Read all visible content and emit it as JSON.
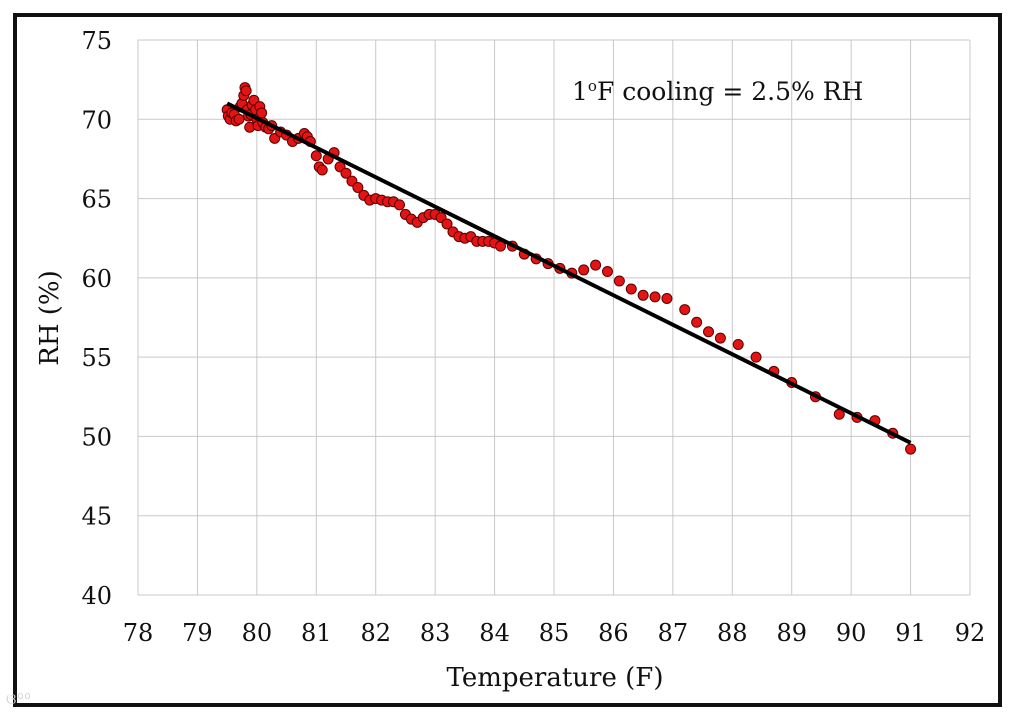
{
  "chart_data": {
    "type": "scatter",
    "title": "",
    "xlabel": "Temperature (F)",
    "ylabel": "RH (%)",
    "xlim": [
      78,
      92
    ],
    "ylim": [
      40,
      75
    ],
    "x_ticks": [
      "78",
      "79",
      "80",
      "81",
      "82",
      "83",
      "84",
      "85",
      "86",
      "87",
      "88",
      "89",
      "90",
      "91",
      "92"
    ],
    "y_ticks": [
      "40",
      "45",
      "50",
      "55",
      "60",
      "65",
      "70",
      "75"
    ],
    "grid": true,
    "legend": "none",
    "annotation": {
      "base": "1",
      "sup": "o",
      "rest": "F cooling = 2.5% RH"
    },
    "colors": {
      "points": "#e41414",
      "point_edge": "#5a0000",
      "trendline": "#000000",
      "grid": "#c8c8c8"
    },
    "trendline": {
      "x": [
        79.5,
        91.0
      ],
      "y": [
        71.0,
        49.6
      ]
    },
    "series": [
      {
        "x": [
          79.5,
          79.52,
          79.55,
          79.58,
          79.62,
          79.65,
          79.7,
          79.72,
          79.75,
          79.78,
          79.8,
          79.82,
          79.84,
          79.86,
          79.88,
          79.9,
          79.92,
          79.95,
          79.98,
          80.0,
          80.02,
          80.05,
          80.08,
          80.1,
          80.15,
          80.2,
          80.25,
          80.3,
          80.4,
          80.5,
          80.6,
          80.7,
          80.8,
          80.85,
          80.9,
          81.0,
          81.05,
          81.1,
          81.2,
          81.3,
          81.4,
          81.5,
          81.6,
          81.7,
          81.8,
          81.9,
          82.0,
          82.1,
          82.2,
          82.3,
          82.4,
          82.5,
          82.6,
          82.7,
          82.8,
          82.9,
          83.0,
          83.1,
          83.2,
          83.3,
          83.4,
          83.5,
          83.6,
          83.7,
          83.8,
          83.9,
          84.0,
          84.1,
          84.3,
          84.5,
          84.7,
          84.9,
          85.1,
          85.3,
          85.5,
          85.7,
          85.9,
          86.1,
          86.3,
          86.5,
          86.7,
          86.9,
          87.2,
          87.4,
          87.6,
          87.8,
          88.1,
          88.4,
          88.7,
          89.0,
          89.4,
          89.8,
          90.1,
          90.4,
          90.7,
          91.0
        ],
        "y": [
          70.6,
          70.2,
          70.0,
          70.4,
          70.3,
          69.9,
          70.0,
          70.8,
          71.0,
          71.5,
          72.0,
          71.8,
          70.6,
          70.2,
          69.5,
          70.3,
          70.9,
          71.2,
          70.6,
          70.0,
          69.6,
          70.8,
          70.4,
          69.8,
          69.5,
          69.4,
          69.6,
          68.8,
          69.2,
          69.0,
          68.6,
          68.8,
          69.1,
          68.9,
          68.6,
          67.7,
          67.0,
          66.8,
          67.5,
          67.9,
          67.0,
          66.6,
          66.1,
          65.7,
          65.2,
          64.9,
          65.0,
          64.9,
          64.8,
          64.8,
          64.6,
          64.0,
          63.7,
          63.5,
          63.8,
          64.0,
          64.0,
          63.8,
          63.4,
          62.9,
          62.6,
          62.5,
          62.6,
          62.3,
          62.3,
          62.3,
          62.2,
          62.0,
          62.0,
          61.5,
          61.2,
          60.9,
          60.6,
          60.3,
          60.5,
          60.8,
          60.4,
          59.8,
          59.3,
          58.9,
          58.8,
          58.7,
          58.0,
          57.2,
          56.6,
          56.2,
          55.8,
          55.0,
          54.1,
          53.4,
          52.5,
          51.4,
          51.2,
          51.0,
          50.2,
          49.2
        ]
      }
    ]
  }
}
